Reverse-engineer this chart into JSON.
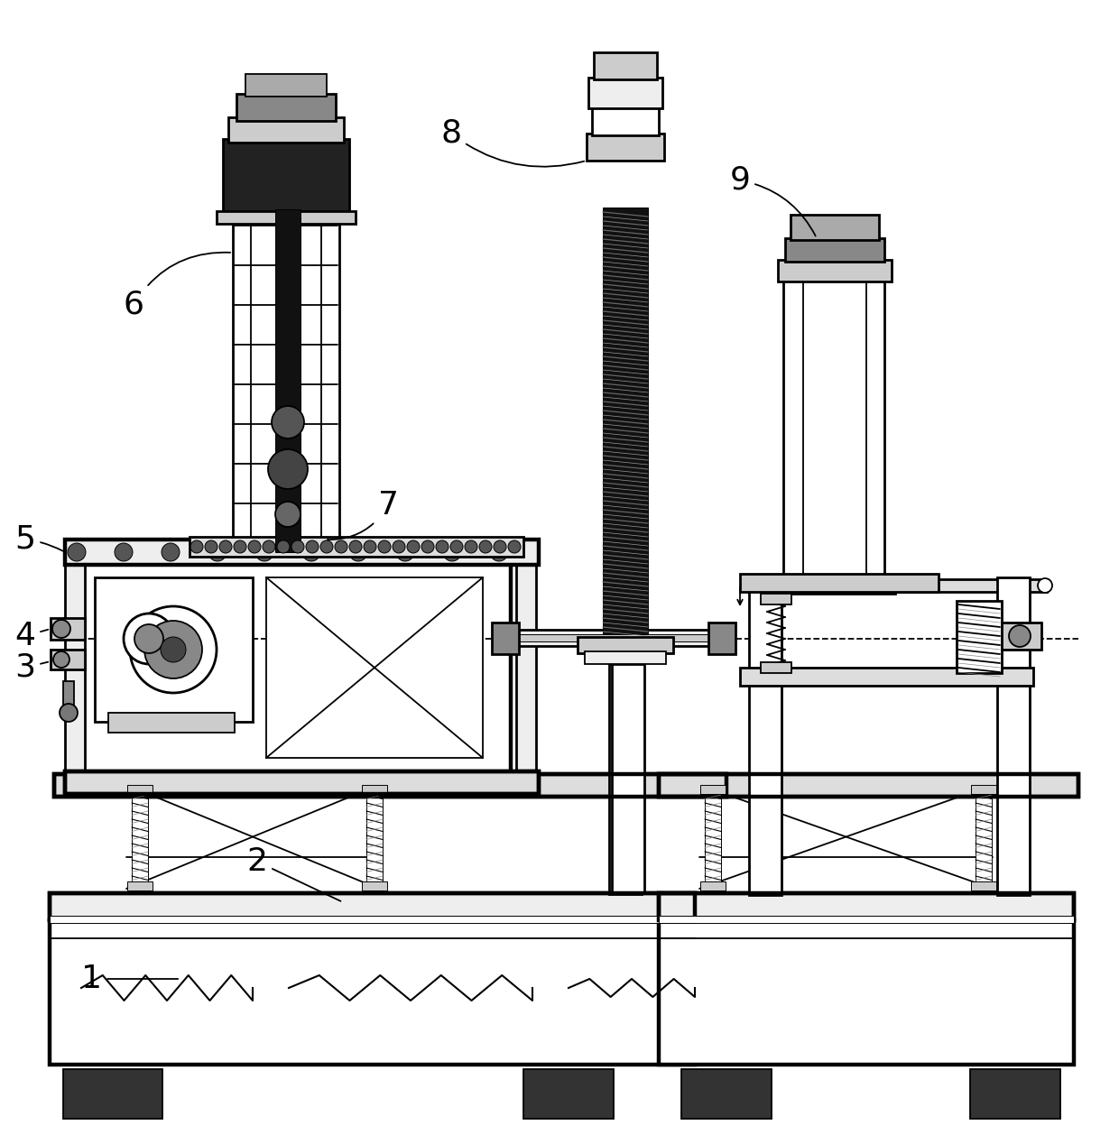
{
  "bg": "#ffffff",
  "figsize": [
    12.4,
    12.68
  ],
  "dpi": 100,
  "lw_ul": 0.7,
  "lw_th": 1.3,
  "lw_md": 2.0,
  "lw_hv": 3.2,
  "label_fs": 26
}
